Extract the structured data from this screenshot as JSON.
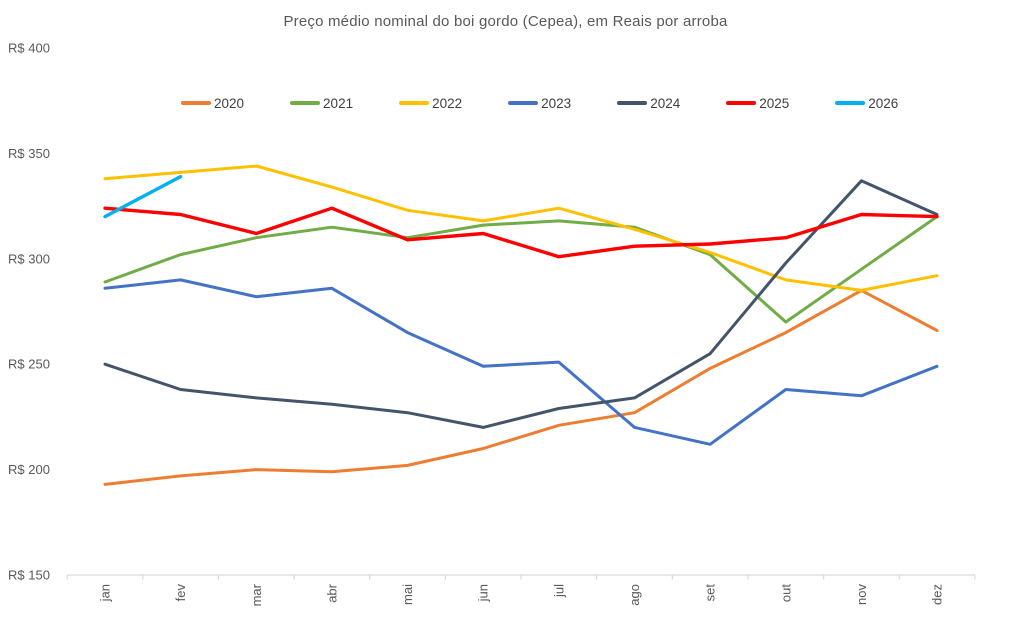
{
  "chart_data": {
    "type": "line",
    "title": "Preço médio nominal do boi gordo (Cepea), em Reais por arroba",
    "x_categories": [
      "jan",
      "fev",
      "mar",
      "abr",
      "mai",
      "jun",
      "jul",
      "ago",
      "set",
      "out",
      "nov",
      "dez"
    ],
    "y_axis": {
      "min": 150,
      "max": 400,
      "step": 50,
      "tick_labels": [
        "R$ 150",
        "R$ 200",
        "R$ 250",
        "R$ 300",
        "R$ 350",
        "R$ 400"
      ],
      "prefix": "R$"
    },
    "grid": false,
    "legend_position": "top",
    "axis_color": "#d9d9d9",
    "label_color": "#595959",
    "legend_text_color": "#3f3f3f",
    "series": [
      {
        "name": "2020",
        "color": "#ED7D31",
        "values": [
          193,
          197,
          200,
          199,
          202,
          210,
          221,
          227,
          248,
          265,
          285,
          266
        ]
      },
      {
        "name": "2021",
        "color": "#70AD47",
        "values": [
          289,
          302,
          310,
          315,
          310,
          316,
          318,
          315,
          302,
          270,
          295,
          320
        ]
      },
      {
        "name": "2022",
        "color": "#FFC000",
        "values": [
          338,
          341,
          344,
          334,
          323,
          318,
          324,
          314,
          303,
          290,
          285,
          292
        ]
      },
      {
        "name": "2023",
        "color": "#4472C4",
        "values": [
          286,
          290,
          282,
          286,
          265,
          249,
          251,
          220,
          212,
          238,
          235,
          249
        ]
      },
      {
        "name": "2024",
        "color": "#44546A",
        "values": [
          250,
          238,
          234,
          231,
          227,
          220,
          229,
          234,
          255,
          298,
          337,
          321
        ]
      },
      {
        "name": "2025",
        "color": "#FF0000",
        "values": [
          324,
          321,
          312,
          324,
          309,
          312,
          301,
          306,
          307,
          310,
          321,
          320
        ]
      },
      {
        "name": "2026",
        "color": "#00B0F0",
        "values": [
          320,
          339,
          null,
          null,
          null,
          null,
          null,
          null,
          null,
          null,
          null,
          null
        ]
      }
    ]
  }
}
